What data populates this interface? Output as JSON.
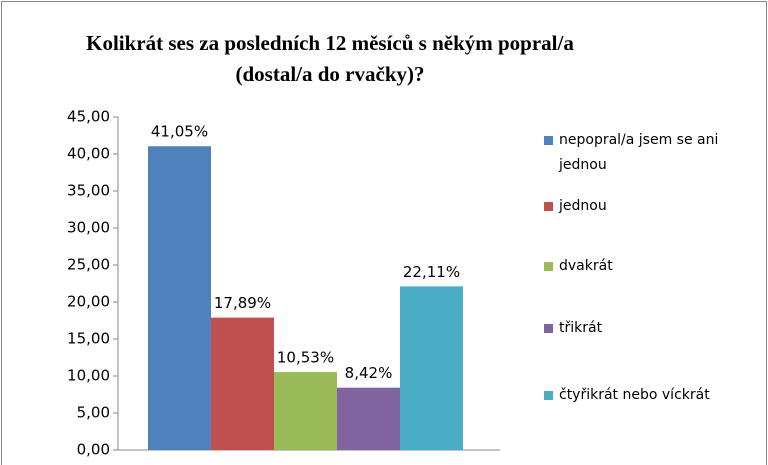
{
  "chart_data": {
    "type": "bar",
    "title": "Kolikrát ses za posledních 12 měsíců s někým popral/a (dostal/a do rvačky)?",
    "series": [
      {
        "name": "nepopral/a jsem se ani jednou",
        "color": "#4f81bd",
        "values": [
          41.05
        ],
        "value_labels": [
          "41,05%"
        ]
      },
      {
        "name": "jednou",
        "color": "#c0504d",
        "values": [
          17.89
        ],
        "value_labels": [
          "17,89%"
        ]
      },
      {
        "name": "dvakrát",
        "color": "#9bbb59",
        "values": [
          10.53
        ],
        "value_labels": [
          "10,53%"
        ]
      },
      {
        "name": "třikrát",
        "color": "#8064a2",
        "values": [
          8.42
        ],
        "value_labels": [
          "8,42%"
        ]
      },
      {
        "name": "čtyřikrát nebo víckrát",
        "color": "#4bacc6",
        "values": [
          22.11
        ],
        "value_labels": [
          "22,11%"
        ]
      }
    ],
    "ylim": [
      0,
      45
    ],
    "yticks": [
      {
        "value": 0,
        "label": "0,00"
      },
      {
        "value": 5,
        "label": "5,00"
      },
      {
        "value": 10,
        "label": "10,00"
      },
      {
        "value": 15,
        "label": "15,00"
      },
      {
        "value": 20,
        "label": "20,00"
      },
      {
        "value": 25,
        "label": "25,00"
      },
      {
        "value": 30,
        "label": "30,00"
      },
      {
        "value": 35,
        "label": "35,00"
      },
      {
        "value": 40,
        "label": "40,00"
      },
      {
        "value": 45,
        "label": "45,00"
      }
    ],
    "legend": "right"
  }
}
